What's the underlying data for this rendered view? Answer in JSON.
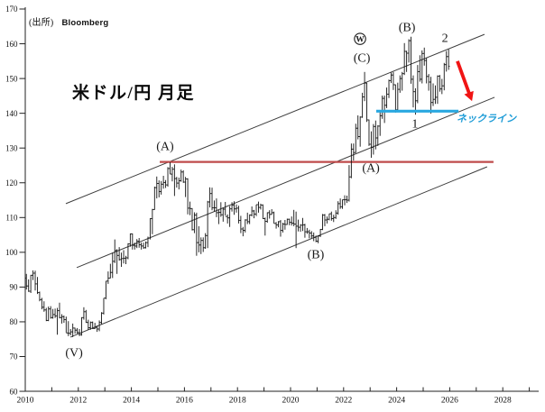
{
  "header": {
    "source_prefix": "(出所)",
    "source_name": "Bloomberg",
    "title": "米ドル/円 月足"
  },
  "colors": {
    "bars": "#131313",
    "axis": "#222222",
    "channel": "#3d3d3d",
    "resistance": "#bf4b4b",
    "neckline": "#29a8e0",
    "neckline_text": "#1e9cd7",
    "arrow": "#f01414",
    "label_text": "#1a1a1a"
  },
  "chart_data": {
    "type": "ohlc_bar",
    "title": "米ドル/円 月足",
    "x_axis": {
      "min_year": 2010,
      "max_year": 2029,
      "tick_step": 1,
      "label_step": 2,
      "labels": [
        "2010",
        "2012",
        "2014",
        "2016",
        "2018",
        "2020",
        "2022",
        "2024",
        "2026",
        "2028"
      ]
    },
    "y_axis": {
      "min": 60,
      "max": 170,
      "step": 10,
      "labels": [
        "60",
        "70",
        "80",
        "90",
        "100",
        "110",
        "120",
        "130",
        "140",
        "150",
        "160",
        "170"
      ]
    },
    "series": {
      "name": "USD/JPY",
      "interval": "monthly",
      "start_year": 2010,
      "ohlc": [
        [
          92.6,
          93.8,
          89.3,
          90.3
        ],
        [
          90.3,
          92.2,
          88.6,
          88.8
        ],
        [
          88.8,
          93.5,
          88.3,
          93.4
        ],
        [
          93.4,
          94.8,
          92.0,
          94.0
        ],
        [
          94.0,
          94.7,
          89.0,
          90.9
        ],
        [
          90.9,
          92.9,
          88.0,
          88.4
        ],
        [
          88.4,
          88.7,
          85.9,
          86.4
        ],
        [
          86.4,
          86.9,
          83.6,
          84.2
        ],
        [
          84.2,
          85.9,
          82.9,
          83.4
        ],
        [
          83.4,
          84.0,
          80.2,
          80.4
        ],
        [
          80.4,
          84.4,
          80.2,
          83.7
        ],
        [
          83.7,
          84.5,
          80.9,
          81.2
        ],
        [
          81.2,
          83.7,
          80.9,
          82.1
        ],
        [
          82.1,
          83.8,
          81.1,
          81.7
        ],
        [
          81.7,
          84.0,
          76.3,
          83.2
        ],
        [
          83.2,
          85.5,
          81.0,
          81.2
        ],
        [
          81.2,
          82.2,
          79.5,
          81.5
        ],
        [
          81.5,
          81.8,
          79.7,
          80.6
        ],
        [
          80.6,
          81.5,
          76.9,
          76.8
        ],
        [
          76.8,
          80.2,
          75.9,
          76.7
        ],
        [
          76.7,
          77.9,
          76.1,
          77.1
        ],
        [
          77.1,
          79.5,
          75.6,
          78.2
        ],
        [
          78.2,
          78.3,
          76.6,
          77.6
        ],
        [
          77.6,
          78.2,
          76.6,
          76.9
        ],
        [
          76.9,
          77.9,
          75.9,
          76.3
        ],
        [
          76.3,
          81.3,
          76.0,
          81.2
        ],
        [
          81.2,
          84.2,
          80.6,
          82.9
        ],
        [
          82.9,
          83.4,
          79.7,
          79.8
        ],
        [
          79.8,
          80.6,
          77.7,
          78.3
        ],
        [
          78.3,
          80.1,
          77.7,
          79.8
        ],
        [
          79.8,
          80.1,
          77.9,
          78.1
        ],
        [
          78.1,
          79.7,
          77.9,
          78.4
        ],
        [
          78.4,
          78.9,
          77.1,
          77.9
        ],
        [
          77.9,
          80.4,
          77.3,
          79.8
        ],
        [
          79.8,
          82.8,
          79.3,
          82.5
        ],
        [
          82.5,
          86.8,
          82.1,
          86.8
        ],
        [
          86.8,
          91.7,
          86.5,
          91.7
        ],
        [
          91.7,
          94.5,
          90.9,
          92.6
        ],
        [
          92.6,
          96.7,
          92.5,
          94.2
        ],
        [
          94.2,
          99.9,
          92.6,
          97.4
        ],
        [
          97.4,
          103.7,
          96.9,
          100.5
        ],
        [
          100.5,
          100.9,
          93.8,
          99.1
        ],
        [
          99.1,
          101.5,
          97.6,
          97.9
        ],
        [
          97.9,
          99.9,
          95.8,
          98.2
        ],
        [
          98.2,
          100.6,
          96.8,
          98.3
        ],
        [
          98.3,
          99.0,
          96.6,
          98.4
        ],
        [
          98.4,
          102.6,
          98.0,
          102.4
        ],
        [
          102.4,
          105.4,
          101.6,
          105.3
        ],
        [
          105.3,
          105.4,
          100.8,
          102.0
        ],
        [
          102.0,
          102.8,
          100.8,
          101.8
        ],
        [
          101.8,
          103.8,
          101.2,
          103.2
        ],
        [
          103.2,
          104.1,
          101.3,
          102.2
        ],
        [
          102.2,
          102.8,
          100.8,
          101.8
        ],
        [
          101.8,
          102.8,
          101.0,
          101.3
        ],
        [
          101.3,
          103.1,
          101.1,
          102.8
        ],
        [
          102.8,
          104.5,
          101.5,
          104.1
        ],
        [
          104.1,
          109.8,
          103.7,
          109.7
        ],
        [
          109.7,
          112.5,
          105.2,
          112.3
        ],
        [
          112.3,
          118.9,
          112.2,
          118.6
        ],
        [
          118.6,
          121.8,
          115.5,
          119.8
        ],
        [
          119.8,
          120.7,
          115.8,
          117.5
        ],
        [
          117.5,
          120.5,
          116.6,
          119.6
        ],
        [
          119.6,
          122.0,
          118.3,
          120.1
        ],
        [
          120.1,
          120.8,
          118.5,
          119.4
        ],
        [
          119.4,
          124.5,
          118.9,
          124.1
        ],
        [
          124.1,
          125.9,
          122.5,
          122.5
        ],
        [
          122.5,
          124.6,
          120.4,
          123.9
        ],
        [
          123.9,
          125.3,
          116.2,
          121.2
        ],
        [
          121.2,
          121.7,
          118.6,
          119.9
        ],
        [
          119.9,
          121.5,
          118.1,
          120.6
        ],
        [
          120.6,
          123.8,
          120.3,
          123.1
        ],
        [
          123.1,
          123.6,
          120.0,
          120.2
        ],
        [
          120.2,
          121.7,
          115.9,
          121.1
        ],
        [
          121.1,
          121.3,
          110.9,
          112.7
        ],
        [
          112.7,
          114.6,
          110.7,
          112.6
        ],
        [
          112.6,
          112.7,
          106.3,
          106.5
        ],
        [
          106.5,
          111.5,
          105.5,
          110.7
        ],
        [
          110.7,
          111.4,
          99.0,
          102.8
        ],
        [
          102.8,
          107.5,
          100.0,
          102.1
        ],
        [
          102.1,
          104.3,
          99.5,
          103.4
        ],
        [
          103.4,
          104.3,
          100.1,
          101.3
        ],
        [
          101.3,
          105.5,
          101.0,
          104.8
        ],
        [
          104.8,
          114.8,
          101.2,
          114.5
        ],
        [
          114.5,
          118.7,
          112.9,
          116.9
        ],
        [
          116.9,
          118.6,
          112.1,
          112.8
        ],
        [
          112.8,
          114.9,
          111.7,
          112.8
        ],
        [
          112.8,
          115.5,
          110.1,
          111.4
        ],
        [
          111.4,
          112.2,
          108.1,
          111.5
        ],
        [
          111.5,
          114.4,
          110.2,
          110.8
        ],
        [
          110.8,
          112.9,
          108.8,
          112.4
        ],
        [
          112.4,
          114.5,
          110.6,
          110.3
        ],
        [
          110.3,
          110.9,
          108.3,
          109.9
        ],
        [
          109.9,
          113.3,
          107.3,
          112.5
        ],
        [
          112.5,
          114.4,
          111.7,
          113.6
        ],
        [
          113.6,
          114.7,
          110.8,
          112.5
        ],
        [
          112.5,
          113.8,
          111.4,
          112.7
        ],
        [
          112.7,
          113.4,
          108.3,
          109.2
        ],
        [
          109.2,
          110.5,
          105.5,
          106.7
        ],
        [
          106.7,
          107.3,
          104.6,
          106.3
        ],
        [
          106.3,
          109.5,
          105.7,
          109.3
        ],
        [
          109.3,
          111.4,
          108.1,
          108.8
        ],
        [
          108.8,
          110.9,
          108.1,
          110.7
        ],
        [
          110.7,
          113.2,
          110.3,
          111.9
        ],
        [
          111.9,
          112.2,
          109.8,
          111.0
        ],
        [
          111.0,
          113.7,
          110.4,
          113.7
        ],
        [
          113.7,
          114.6,
          111.4,
          112.9
        ],
        [
          112.9,
          114.0,
          112.3,
          113.6
        ],
        [
          113.6,
          113.8,
          109.6,
          109.7
        ],
        [
          109.7,
          110.0,
          104.8,
          108.9
        ],
        [
          108.9,
          111.5,
          108.5,
          111.4
        ],
        [
          111.4,
          112.1,
          109.7,
          110.9
        ],
        [
          110.9,
          112.4,
          110.8,
          111.4
        ],
        [
          111.4,
          111.7,
          108.3,
          108.3
        ],
        [
          108.3,
          108.7,
          106.8,
          107.9
        ],
        [
          107.9,
          109.0,
          107.2,
          108.8
        ],
        [
          108.8,
          109.3,
          104.5,
          106.3
        ],
        [
          106.3,
          108.5,
          105.7,
          108.1
        ],
        [
          108.1,
          109.3,
          106.5,
          108.0
        ],
        [
          108.0,
          109.7,
          107.9,
          109.5
        ],
        [
          109.5,
          109.7,
          107.8,
          108.6
        ],
        [
          108.6,
          110.3,
          107.7,
          108.4
        ],
        [
          108.4,
          112.2,
          107.5,
          108.1
        ],
        [
          108.1,
          111.7,
          101.2,
          107.5
        ],
        [
          107.5,
          109.4,
          106.0,
          107.2
        ],
        [
          107.2,
          108.1,
          105.9,
          107.8
        ],
        [
          107.8,
          109.9,
          106.1,
          107.9
        ],
        [
          107.9,
          108.2,
          104.2,
          105.9
        ],
        [
          105.9,
          107.0,
          105.3,
          105.9
        ],
        [
          105.9,
          106.5,
          104.0,
          105.5
        ],
        [
          105.5,
          106.1,
          104.0,
          104.7
        ],
        [
          104.7,
          105.7,
          103.2,
          104.3
        ],
        [
          104.3,
          104.8,
          102.9,
          103.2
        ],
        [
          103.2,
          104.9,
          102.6,
          104.7
        ],
        [
          104.7,
          106.7,
          104.4,
          106.6
        ],
        [
          106.6,
          111.0,
          106.4,
          110.7
        ],
        [
          110.7,
          111.0,
          107.5,
          109.3
        ],
        [
          109.3,
          110.3,
          108.3,
          109.5
        ],
        [
          109.5,
          111.1,
          109.2,
          111.1
        ],
        [
          111.1,
          111.7,
          109.1,
          109.7
        ],
        [
          109.7,
          110.8,
          108.7,
          110.0
        ],
        [
          110.0,
          112.1,
          109.6,
          111.3
        ],
        [
          111.3,
          114.7,
          110.8,
          114.0
        ],
        [
          114.0,
          115.5,
          112.5,
          113.1
        ],
        [
          113.1,
          115.2,
          112.5,
          115.1
        ],
        [
          115.1,
          116.4,
          113.5,
          115.1
        ],
        [
          115.1,
          116.3,
          114.2,
          115.0
        ],
        [
          115.0,
          125.1,
          114.6,
          121.7
        ],
        [
          121.7,
          131.3,
          121.3,
          129.7
        ],
        [
          129.7,
          131.3,
          126.4,
          128.7
        ],
        [
          128.7,
          137.0,
          128.6,
          135.7
        ],
        [
          135.7,
          139.4,
          132.5,
          133.3
        ],
        [
          133.3,
          139.1,
          130.4,
          138.9
        ],
        [
          138.9,
          145.9,
          138.7,
          144.7
        ],
        [
          144.7,
          151.9,
          143.5,
          148.7
        ],
        [
          148.7,
          148.8,
          137.5,
          138.1
        ],
        [
          138.1,
          138.2,
          130.6,
          131.1
        ],
        [
          131.1,
          134.8,
          127.2,
          130.2
        ],
        [
          130.2,
          136.9,
          128.1,
          136.2
        ],
        [
          136.2,
          137.9,
          129.6,
          132.9
        ],
        [
          132.9,
          136.6,
          130.6,
          136.3
        ],
        [
          136.3,
          140.9,
          133.5,
          139.3
        ],
        [
          139.3,
          145.1,
          138.4,
          144.3
        ],
        [
          144.3,
          145.1,
          137.2,
          142.3
        ],
        [
          142.3,
          147.4,
          141.5,
          145.5
        ],
        [
          145.5,
          149.7,
          144.4,
          149.4
        ],
        [
          149.4,
          151.7,
          148.7,
          151.0
        ],
        [
          151.0,
          151.9,
          146.7,
          148.2
        ],
        [
          148.2,
          148.3,
          140.2,
          141.0
        ],
        [
          141.0,
          148.8,
          140.8,
          146.9
        ],
        [
          146.9,
          150.9,
          145.9,
          150.0
        ],
        [
          150.0,
          151.9,
          146.5,
          151.4
        ],
        [
          151.4,
          160.2,
          151.0,
          157.8
        ],
        [
          157.8,
          158.0,
          151.9,
          157.3
        ],
        [
          157.3,
          161.3,
          154.6,
          160.9
        ],
        [
          160.9,
          162.0,
          148.5,
          149.8
        ],
        [
          149.8,
          150.9,
          141.7,
          146.2
        ],
        [
          146.2,
          147.2,
          139.6,
          143.6
        ],
        [
          143.6,
          153.9,
          142.9,
          152.0
        ],
        [
          152.0,
          156.7,
          149.1,
          149.8
        ],
        [
          149.8,
          158.1,
          148.6,
          157.2
        ],
        [
          157.2,
          158.9,
          153.7,
          155.2
        ],
        [
          155.2,
          155.9,
          148.6,
          150.6
        ],
        [
          150.6,
          151.3,
          146.5,
          149.0
        ],
        [
          149.0,
          150.5,
          139.9,
          143.1
        ],
        [
          143.1,
          148.6,
          142.1,
          144.0
        ],
        [
          144.0,
          148.0,
          142.7,
          144.6
        ],
        [
          144.6,
          150.9,
          142.7,
          150.7
        ],
        [
          150.7,
          151.0,
          146.2,
          147.0
        ],
        [
          147.0,
          149.9,
          145.5,
          147.9
        ],
        [
          147.9,
          154.5,
          146.6,
          154.0
        ],
        [
          154.0,
          157.9,
          152.0,
          156.3
        ],
        [
          156.3,
          158.4,
          152.5,
          153.5
        ]
      ]
    },
    "trendlines": [
      {
        "name": "upper-channel-line",
        "x1": 2011.53,
        "v1": 114.0,
        "x2": 2027.31,
        "v2": 162.7
      },
      {
        "name": "middle-channel-line",
        "x1": 2011.94,
        "v1": 95.6,
        "x2": 2027.69,
        "v2": 144.6
      },
      {
        "name": "lower-channel-line",
        "x1": 2011.7,
        "v1": 75.6,
        "x2": 2027.41,
        "v2": 124.6
      }
    ],
    "hlines": [
      {
        "name": "resistance-2015-high-line",
        "value": 126.0,
        "x1": 2015.07,
        "x2": 2027.65,
        "color_key": "resistance",
        "width": 2.3
      },
      {
        "name": "neckline-line",
        "value": 140.6,
        "x1": 2023.23,
        "x2": 2026.33,
        "color_key": "neckline",
        "width": 3.2
      }
    ],
    "arrow": {
      "x1": 2026.29,
      "v1": 155.0,
      "x2": 2026.84,
      "v2": 143.5
    },
    "wave_labels": [
      {
        "text": "(V)",
        "x": 2011.84,
        "v": 71.2,
        "circled": false
      },
      {
        "text": "(A)",
        "x": 2015.27,
        "v": 130.6,
        "circled": false
      },
      {
        "text": "(B)",
        "x": 2020.95,
        "v": 99.4,
        "circled": false
      },
      {
        "text": "(C)",
        "x": 2022.69,
        "v": 156.0,
        "circled": false
      },
      {
        "text": "W",
        "x": 2022.62,
        "v": 161.4,
        "circled": true
      },
      {
        "text": "(A)",
        "x": 2023.03,
        "v": 124.4,
        "circled": false
      },
      {
        "text": "(B)",
        "x": 2024.39,
        "v": 164.8,
        "circled": false
      },
      {
        "text": "1",
        "x": 2024.69,
        "v": 137.0,
        "circled": false
      },
      {
        "text": "2",
        "x": 2025.82,
        "v": 161.7,
        "circled": false
      }
    ],
    "annotations": {
      "neckline_label": {
        "text": "ネックライン",
        "x": 2027.38,
        "v": 138.6
      }
    }
  }
}
